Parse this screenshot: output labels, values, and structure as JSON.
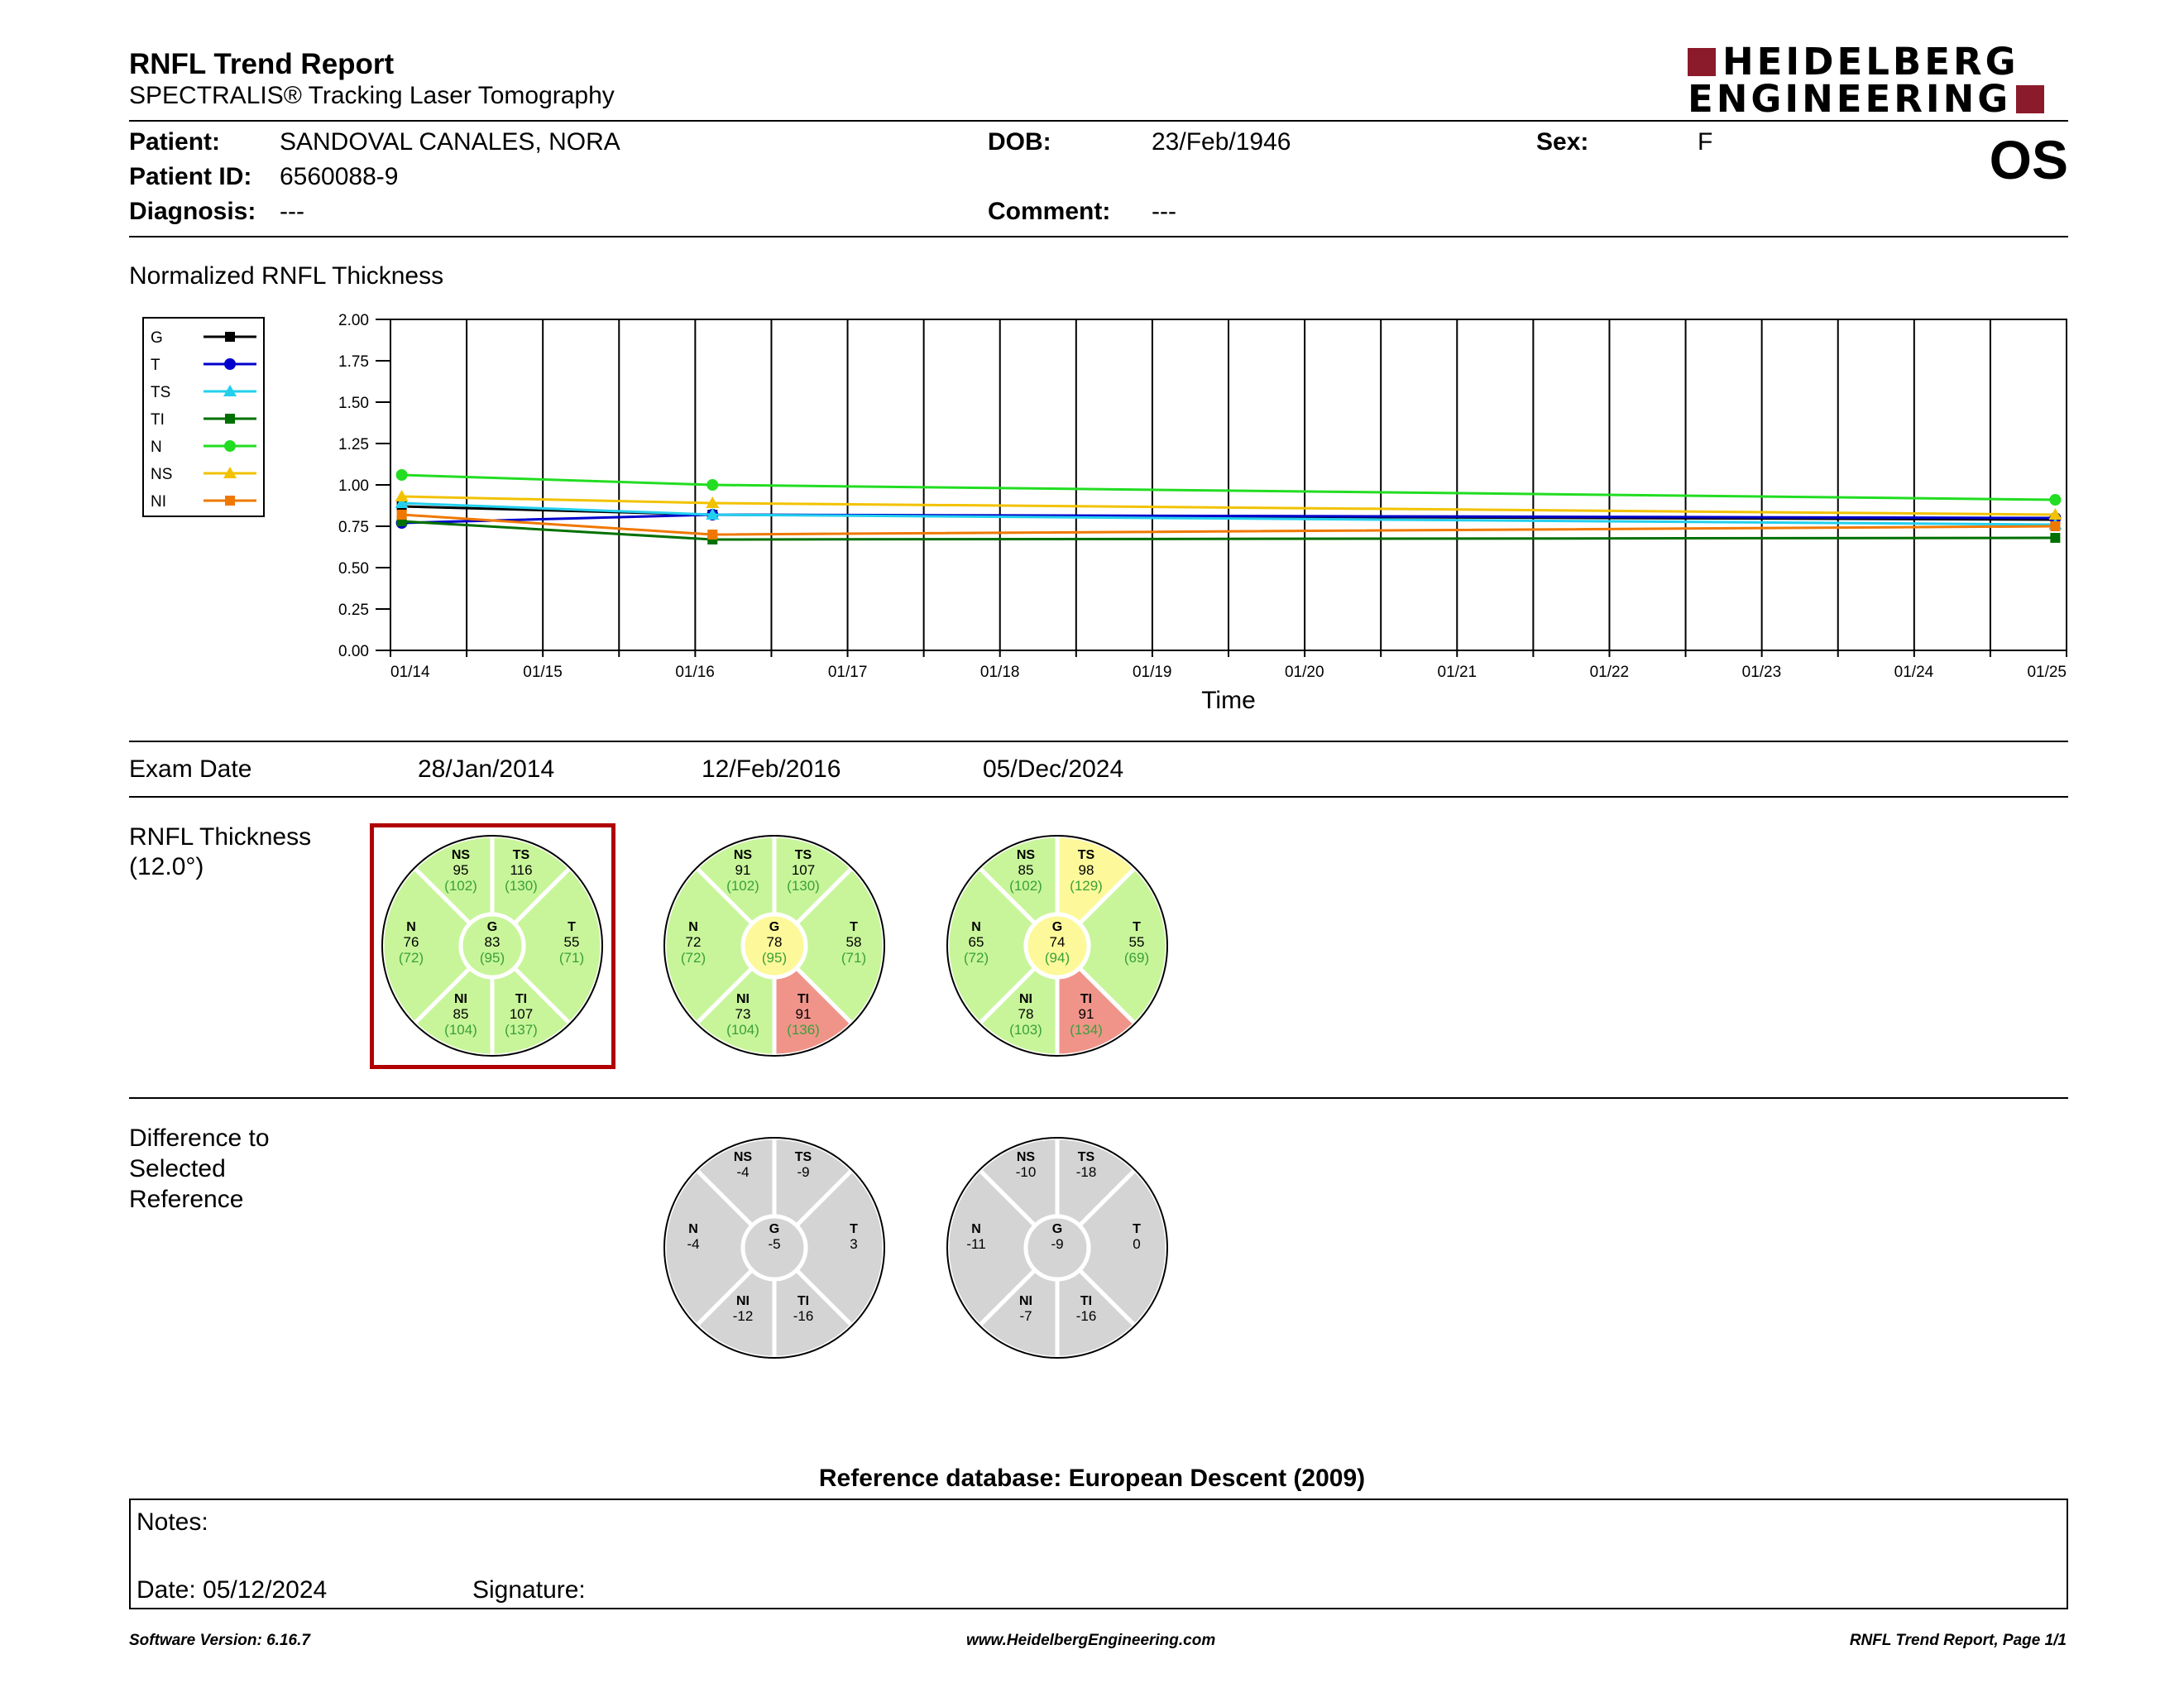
{
  "report": {
    "title": "RNFL Trend Report",
    "subtitle": "SPECTRALIS® Tracking Laser Tomography",
    "laterality": "OS"
  },
  "logo": {
    "line1": "HEIDELBERG",
    "line2": "ENGINEERING",
    "color": "#8b1a2a"
  },
  "patient": {
    "name_label": "Patient:",
    "name": "SANDOVAL CANALES, NORA",
    "id_label": "Patient ID:",
    "id": "6560088-9",
    "diagnosis_label": "Diagnosis:",
    "diagnosis": "---",
    "dob_label": "DOB:",
    "dob": "23/Feb/1946",
    "comment_label": "Comment:",
    "comment": "---",
    "sex_label": "Sex:",
    "sex": "F"
  },
  "chart_section_title": "Normalized RNFL Thickness",
  "chart_data": {
    "type": "line",
    "xlabel": "Time",
    "ylabel": "",
    "ylim": [
      0,
      2
    ],
    "yticks": [
      "0.00",
      "0.25",
      "0.50",
      "0.75",
      "1.00",
      "1.25",
      "1.50",
      "1.75",
      "2.00"
    ],
    "xlim": [
      "2014-01-01",
      "2025-01-01"
    ],
    "xticks": [
      {
        "label": "01/14",
        "date": "2014-01-01"
      },
      {
        "label": "01/15",
        "date": "2015-01-01"
      },
      {
        "label": "01/16",
        "date": "2016-01-01"
      },
      {
        "label": "01/17",
        "date": "2017-01-01"
      },
      {
        "label": "01/18",
        "date": "2018-01-01"
      },
      {
        "label": "01/19",
        "date": "2019-01-01"
      },
      {
        "label": "01/20",
        "date": "2020-01-01"
      },
      {
        "label": "01/21",
        "date": "2021-01-01"
      },
      {
        "label": "01/22",
        "date": "2022-01-01"
      },
      {
        "label": "01/23",
        "date": "2023-01-01"
      },
      {
        "label": "01/24",
        "date": "2024-01-01"
      },
      {
        "label": "01/25",
        "date": "2025-01-01"
      }
    ],
    "x": [
      "2014-01-28",
      "2016-02-12",
      "2024-12-05"
    ],
    "grid": true,
    "legend_position": "left",
    "series": [
      {
        "name": "G",
        "color": "#000000",
        "marker": "square",
        "values": [
          0.87,
          0.82,
          0.79
        ]
      },
      {
        "name": "T",
        "color": "#0000cc",
        "marker": "circle",
        "values": [
          0.77,
          0.82,
          0.8
        ]
      },
      {
        "name": "TS",
        "color": "#22d0ee",
        "marker": "triangle",
        "values": [
          0.89,
          0.82,
          0.76
        ]
      },
      {
        "name": "TI",
        "color": "#007000",
        "marker": "square",
        "values": [
          0.78,
          0.67,
          0.68
        ]
      },
      {
        "name": "N",
        "color": "#22dd22",
        "marker": "circle",
        "values": [
          1.06,
          1.0,
          0.91
        ]
      },
      {
        "name": "NS",
        "color": "#f2c200",
        "marker": "triangle",
        "values": [
          0.93,
          0.89,
          0.82
        ]
      },
      {
        "name": "NI",
        "color": "#f07800",
        "marker": "square",
        "values": [
          0.82,
          0.7,
          0.75
        ]
      }
    ]
  },
  "exams": {
    "header_label": "Exam Date",
    "dates": [
      "28/Jan/2014",
      "12/Feb/2016",
      "05/Dec/2024"
    ],
    "thickness_label_line1": "RNFL Thickness",
    "thickness_label_line2": "(12.0°)",
    "difference_label_lines": [
      "Difference to",
      "Selected",
      "Reference"
    ],
    "colors": {
      "normal": "#c8f59a",
      "borderline": "#fdf99a",
      "outside": "#f0948a",
      "difference": "#d4d4d4",
      "ref_text": "#3aa03a"
    },
    "thickness": [
      {
        "selected": true,
        "sectors": {
          "G": {
            "label": "G",
            "value": "83",
            "ref": "(95)",
            "status": "normal"
          },
          "NS": {
            "label": "NS",
            "value": "95",
            "ref": "(102)",
            "status": "normal"
          },
          "TS": {
            "label": "TS",
            "value": "116",
            "ref": "(130)",
            "status": "normal"
          },
          "N": {
            "label": "N",
            "value": "76",
            "ref": "(72)",
            "status": "normal"
          },
          "T": {
            "label": "T",
            "value": "55",
            "ref": "(71)",
            "status": "normal"
          },
          "NI": {
            "label": "NI",
            "value": "85",
            "ref": "(104)",
            "status": "normal"
          },
          "TI": {
            "label": "TI",
            "value": "107",
            "ref": "(137)",
            "status": "normal"
          }
        }
      },
      {
        "selected": false,
        "sectors": {
          "G": {
            "label": "G",
            "value": "78",
            "ref": "(95)",
            "status": "borderline"
          },
          "NS": {
            "label": "NS",
            "value": "91",
            "ref": "(102)",
            "status": "normal"
          },
          "TS": {
            "label": "TS",
            "value": "107",
            "ref": "(130)",
            "status": "normal"
          },
          "N": {
            "label": "N",
            "value": "72",
            "ref": "(72)",
            "status": "normal"
          },
          "T": {
            "label": "T",
            "value": "58",
            "ref": "(71)",
            "status": "normal"
          },
          "NI": {
            "label": "NI",
            "value": "73",
            "ref": "(104)",
            "status": "normal"
          },
          "TI": {
            "label": "TI",
            "value": "91",
            "ref": "(136)",
            "status": "outside"
          }
        }
      },
      {
        "selected": false,
        "sectors": {
          "G": {
            "label": "G",
            "value": "74",
            "ref": "(94)",
            "status": "borderline"
          },
          "NS": {
            "label": "NS",
            "value": "85",
            "ref": "(102)",
            "status": "normal"
          },
          "TS": {
            "label": "TS",
            "value": "98",
            "ref": "(129)",
            "status": "borderline"
          },
          "N": {
            "label": "N",
            "value": "65",
            "ref": "(72)",
            "status": "normal"
          },
          "T": {
            "label": "T",
            "value": "55",
            "ref": "(69)",
            "status": "normal"
          },
          "NI": {
            "label": "NI",
            "value": "78",
            "ref": "(103)",
            "status": "normal"
          },
          "TI": {
            "label": "TI",
            "value": "91",
            "ref": "(134)",
            "status": "outside"
          }
        }
      }
    ],
    "difference": [
      null,
      {
        "sectors": {
          "G": {
            "label": "G",
            "value": "-5"
          },
          "NS": {
            "label": "NS",
            "value": "-4"
          },
          "TS": {
            "label": "TS",
            "value": "-9"
          },
          "N": {
            "label": "N",
            "value": "-4"
          },
          "T": {
            "label": "T",
            "value": "3"
          },
          "NI": {
            "label": "NI",
            "value": "-12"
          },
          "TI": {
            "label": "TI",
            "value": "-16"
          }
        }
      },
      {
        "sectors": {
          "G": {
            "label": "G",
            "value": "-9"
          },
          "NS": {
            "label": "NS",
            "value": "-10"
          },
          "TS": {
            "label": "TS",
            "value": "-18"
          },
          "N": {
            "label": "N",
            "value": "-11"
          },
          "T": {
            "label": "T",
            "value": "0"
          },
          "NI": {
            "label": "NI",
            "value": "-7"
          },
          "TI": {
            "label": "TI",
            "value": "-16"
          }
        }
      }
    ]
  },
  "reference_db": "Reference database: European Descent (2009)",
  "notes": {
    "label": "Notes:",
    "date_label": "Date: 05/12/2024",
    "signature_label": "Signature:"
  },
  "footer": {
    "software": "Software Version: 6.16.7",
    "website": "www.HeidelbergEngineering.com",
    "page": "RNFL Trend Report, Page 1/1"
  }
}
